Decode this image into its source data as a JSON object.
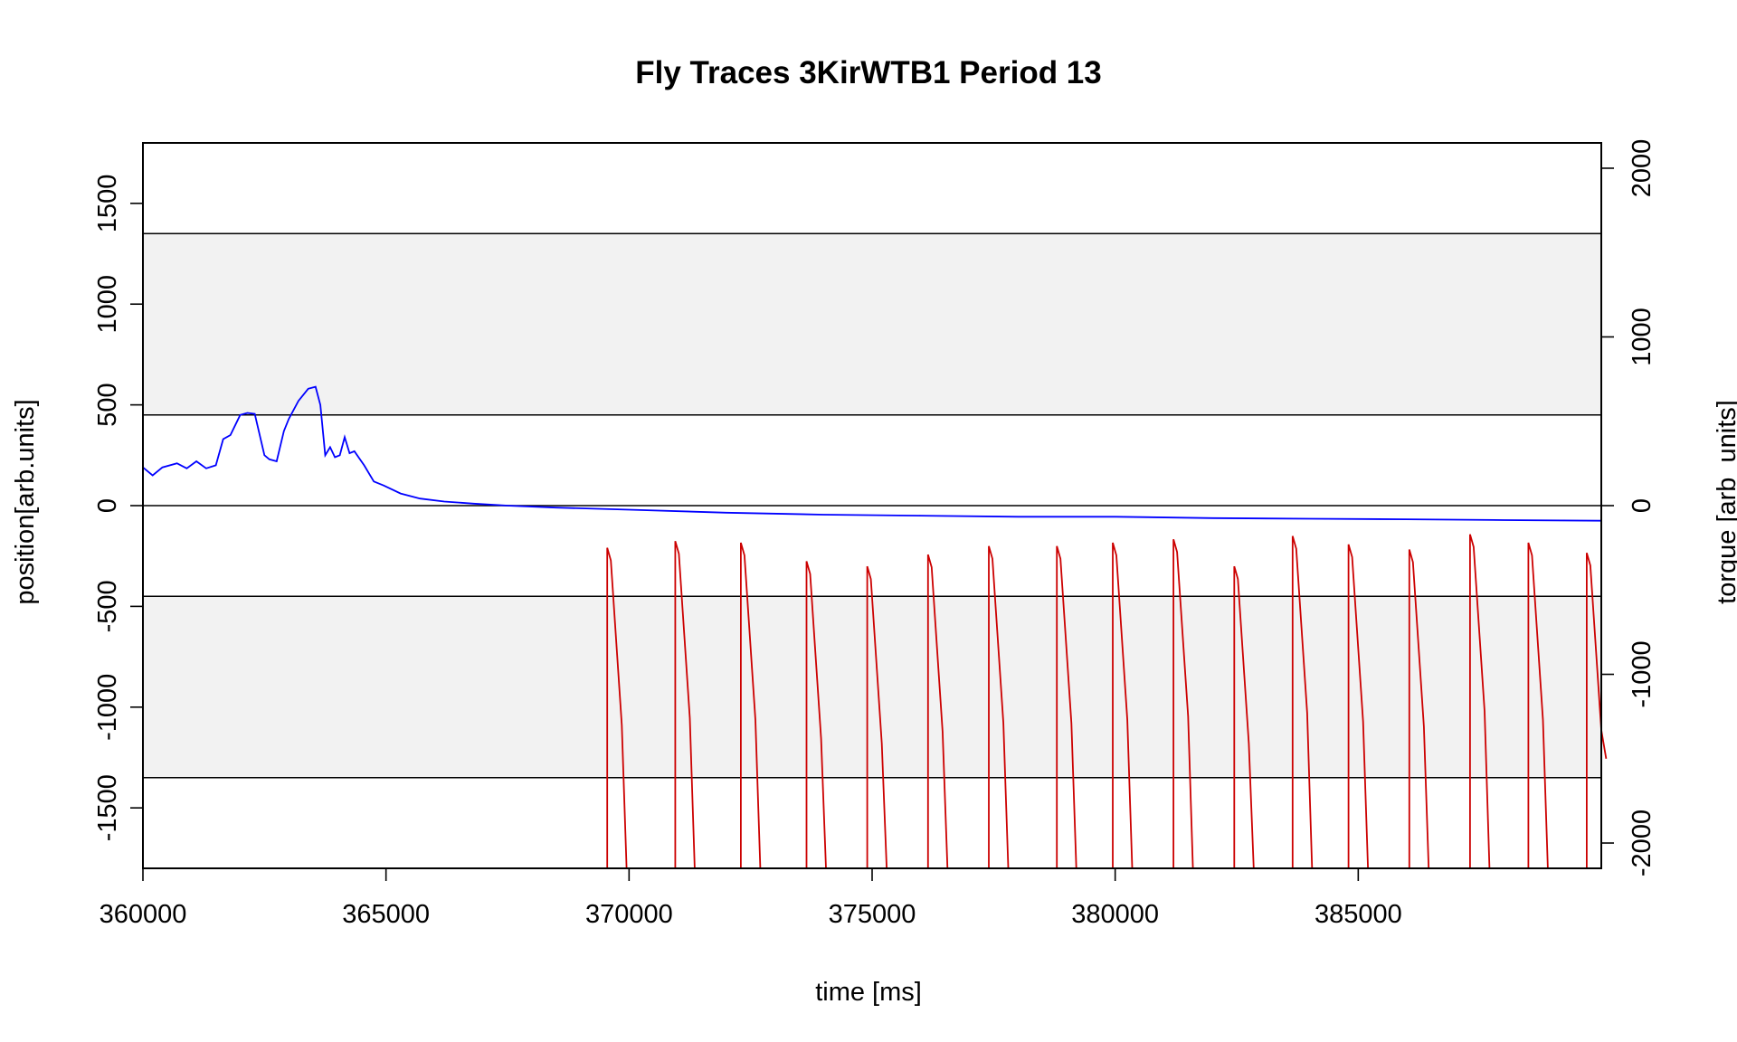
{
  "chart_data": {
    "type": "line",
    "title": "Fly Traces 3KirWTB1 Period 13",
    "xlabel": "time [ms]",
    "ylabel_left": "position[arb.units]",
    "ylabel_right": "torque [arb_units]",
    "xlim": [
      360000,
      390000
    ],
    "ylim_left": [
      -1800,
      1800
    ],
    "ylim_right": [
      -2150,
      2150
    ],
    "x_ticks": [
      360000,
      365000,
      370000,
      375000,
      380000,
      385000
    ],
    "y_ticks_left": [
      -1500,
      -1000,
      -500,
      0,
      500,
      1000,
      1500
    ],
    "y_ticks_right": [
      -2000,
      -1000,
      0,
      1000,
      2000
    ],
    "x_tick_labels": [
      "360000",
      "365000",
      "370000",
      "375000",
      "380000",
      "385000"
    ],
    "y_tick_labels_left": [
      "-1500",
      "-1000",
      "-500",
      "0",
      "500",
      "1000",
      "1500"
    ],
    "y_tick_labels_right": [
      "-2000",
      "-1000",
      "0",
      "1000",
      "2000"
    ],
    "reference_lines_left": [
      1350,
      450,
      0,
      -450,
      -1350
    ],
    "shaded_bands_left": [
      [
        450,
        1350
      ],
      [
        -1350,
        -450
      ]
    ],
    "band_color": "#f2f2f2",
    "grid": false,
    "series": [
      {
        "color": "#0000ff",
        "axis": "left",
        "x": [
          360000,
          360200,
          360400,
          360700,
          360900,
          361100,
          361300,
          361500,
          361650,
          361800,
          362000,
          362150,
          362300,
          362500,
          362600,
          362750,
          362900,
          363000,
          363200,
          363400,
          363550,
          363650,
          363750,
          363850,
          363950,
          364050,
          364150,
          364250,
          364350,
          364550,
          364750,
          364950,
          365300,
          365700,
          366200,
          366800,
          367500,
          368500,
          370000,
          372000,
          374000,
          376000,
          378000,
          380000,
          382000,
          384000,
          386000,
          388000,
          390000
        ],
        "y": [
          190,
          150,
          190,
          210,
          185,
          220,
          185,
          200,
          330,
          350,
          450,
          460,
          455,
          250,
          230,
          220,
          370,
          430,
          520,
          580,
          590,
          500,
          250,
          290,
          240,
          250,
          340,
          260,
          270,
          200,
          120,
          100,
          60,
          35,
          20,
          10,
          0,
          -10,
          -20,
          -35,
          -45,
          -50,
          -55,
          -55,
          -62,
          -65,
          -68,
          -72,
          -75
        ]
      },
      {
        "color": "#cc0000",
        "axis": "right",
        "pulses": [
          {
            "x": 369550,
            "peak": -250,
            "end": -2150
          },
          {
            "x": 370950,
            "peak": -210,
            "end": -2150
          },
          {
            "x": 372300,
            "peak": -220,
            "end": -2150
          },
          {
            "x": 373650,
            "peak": -330,
            "end": -2150
          },
          {
            "x": 374900,
            "peak": -360,
            "end": -2150
          },
          {
            "x": 376150,
            "peak": -290,
            "end": -2150
          },
          {
            "x": 377400,
            "peak": -240,
            "end": -2150
          },
          {
            "x": 378800,
            "peak": -240,
            "end": -2150
          },
          {
            "x": 379950,
            "peak": -220,
            "end": -2150
          },
          {
            "x": 381200,
            "peak": -200,
            "end": -2150
          },
          {
            "x": 382450,
            "peak": -360,
            "end": -2150
          },
          {
            "x": 383650,
            "peak": -180,
            "end": -2150
          },
          {
            "x": 384800,
            "peak": -230,
            "end": -2150
          },
          {
            "x": 386050,
            "peak": -260,
            "end": -2150
          },
          {
            "x": 387300,
            "peak": -170,
            "end": -2150
          },
          {
            "x": 388500,
            "peak": -220,
            "end": -2150
          },
          {
            "x": 389700,
            "peak": -280,
            "end": -1500
          }
        ]
      }
    ]
  }
}
